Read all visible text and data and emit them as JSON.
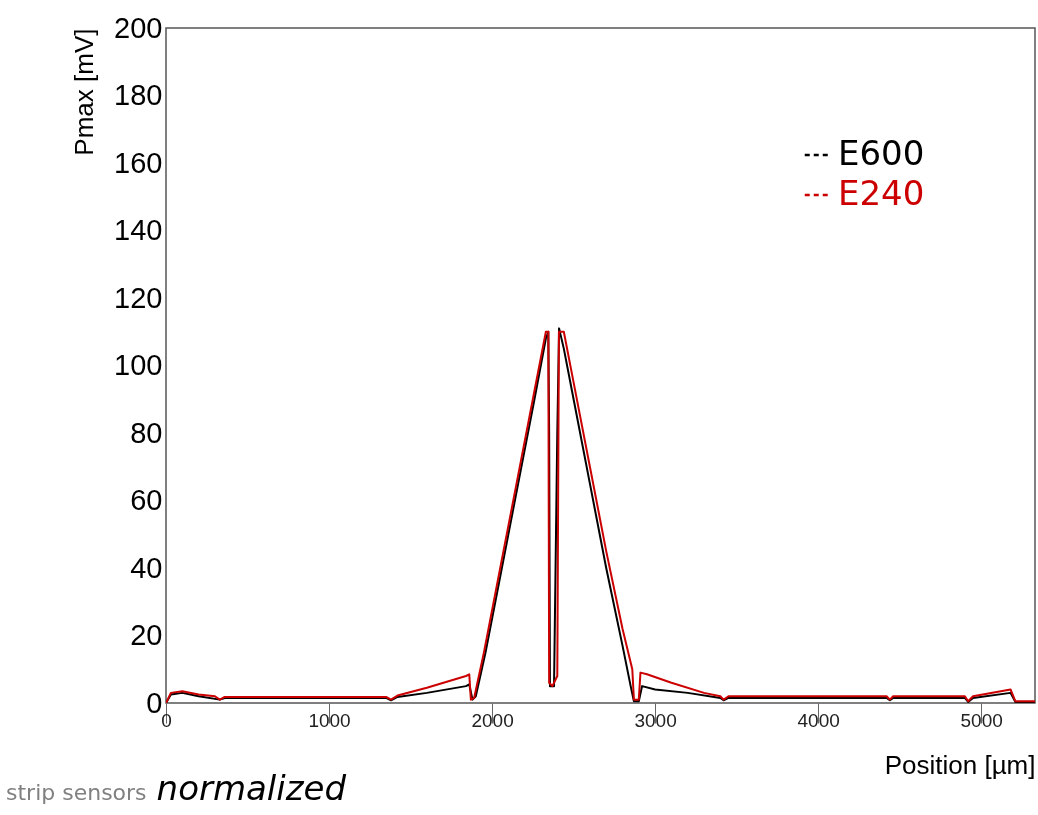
{
  "chart_data": {
    "type": "line",
    "xlabel": "Position [µm]",
    "ylabel": "Pmax [mV]",
    "xlim": [
      0,
      5330
    ],
    "xticks": [
      0,
      1000,
      2000,
      3000,
      4000,
      5000
    ],
    "ylim": [
      0,
      200
    ],
    "yticks": [
      0,
      20,
      40,
      60,
      80,
      100,
      120,
      140,
      160,
      180,
      200
    ],
    "grid": false,
    "legend": "top right",
    "annotations": [
      "strip sensors",
      "normalized"
    ],
    "series": [
      {
        "name": "E600",
        "color": "#000000",
        "x": [
          0,
          30,
          100,
          200,
          330,
          360,
          1350,
          1380,
          1420,
          1600,
          1840,
          1860,
          1880,
          1900,
          1960,
          2060,
          2160,
          2260,
          2330,
          2345,
          2350,
          2355,
          2380,
          2400,
          2411,
          2440,
          2500,
          2600,
          2700,
          2800,
          2850,
          2870,
          2900,
          2920,
          3000,
          3200,
          3400,
          3420,
          3450,
          4420,
          4440,
          4460,
          4900,
          4920,
          4950,
          5180,
          5210,
          5330
        ],
        "values": [
          0,
          2.5,
          3,
          2,
          1,
          1.5,
          1.5,
          0.8,
          1.8,
          3,
          5,
          5.5,
          1,
          2,
          15,
          40,
          65,
          90,
          108,
          110,
          80,
          5,
          5,
          80,
          111,
          105,
          90,
          65,
          40,
          17,
          5,
          0.5,
          0.5,
          5,
          4,
          3,
          1.5,
          0.8,
          1.5,
          1.5,
          0.8,
          1.5,
          1.5,
          0.3,
          1.5,
          3,
          0.3,
          0.3
        ]
      },
      {
        "name": "E240",
        "color": "#cc0000",
        "x": [
          0,
          30,
          100,
          200,
          300,
          330,
          360,
          1350,
          1380,
          1420,
          1600,
          1840,
          1860,
          1870,
          1890,
          1950,
          2050,
          2150,
          2250,
          2330,
          2345,
          2350,
          2370,
          2400,
          2410,
          2440,
          2500,
          2600,
          2700,
          2800,
          2860,
          2870,
          2900,
          2910,
          2950,
          3100,
          3300,
          3400,
          3420,
          3450,
          4420,
          4440,
          4460,
          4900,
          4920,
          4950,
          5180,
          5210,
          5330
        ],
        "values": [
          0,
          3,
          3.5,
          2.5,
          2,
          1,
          1.8,
          1.8,
          1,
          2.2,
          4.5,
          8,
          8.5,
          1,
          1.5,
          15,
          40,
          65,
          90,
          110,
          110,
          6,
          5,
          8,
          110,
          110,
          95,
          70,
          45,
          22,
          10,
          1,
          1,
          9,
          8.5,
          6,
          3,
          2,
          1,
          2,
          2,
          1,
          2,
          2,
          0.5,
          2,
          4,
          0.5,
          0.5
        ]
      }
    ]
  }
}
